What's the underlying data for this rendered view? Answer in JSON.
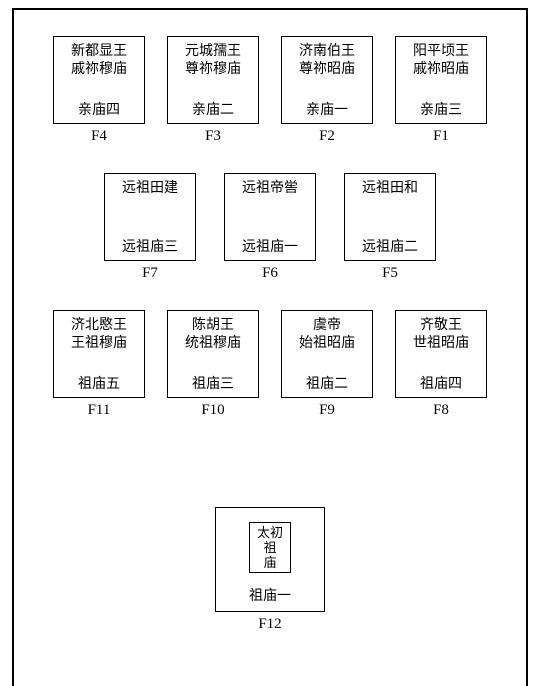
{
  "border_color": "#000000",
  "background_color": "#ffffff",
  "font_family": "SimSun",
  "rows": {
    "row1": [
      {
        "id": "F4",
        "line1": "新都显王",
        "line2": "戚祢穆庙",
        "bottom": "亲庙四"
      },
      {
        "id": "F3",
        "line1": "元城孺王",
        "line2": "尊祢穆庙",
        "bottom": "亲庙二"
      },
      {
        "id": "F2",
        "line1": "济南伯王",
        "line2": "尊祢昭庙",
        "bottom": "亲庙一"
      },
      {
        "id": "F1",
        "line1": "阳平顷王",
        "line2": "戚祢昭庙",
        "bottom": "亲庙三"
      }
    ],
    "row2": [
      {
        "id": "F7",
        "line1": "远祖田建",
        "line2": "",
        "bottom": "远祖庙三"
      },
      {
        "id": "F6",
        "line1": "远祖帝喾",
        "line2": "",
        "bottom": "远祖庙一"
      },
      {
        "id": "F5",
        "line1": "远祖田和",
        "line2": "",
        "bottom": "远祖庙二"
      }
    ],
    "row3": [
      {
        "id": "F11",
        "line1": "济北愍王",
        "line2": "王祖穆庙",
        "bottom": "祖庙五"
      },
      {
        "id": "F10",
        "line1": "陈胡王",
        "line2": "统祖穆庙",
        "bottom": "祖庙三"
      },
      {
        "id": "F9",
        "line1": "虞帝",
        "line2": "始祖昭庙",
        "bottom": "祖庙二"
      },
      {
        "id": "F8",
        "line1": "齐敬王",
        "line2": "世祖昭庙",
        "bottom": "祖庙四"
      }
    ],
    "f12": {
      "id": "F12",
      "inner_lines": [
        "太初",
        "祖",
        "庙"
      ],
      "bottom": "祖庙一"
    }
  }
}
